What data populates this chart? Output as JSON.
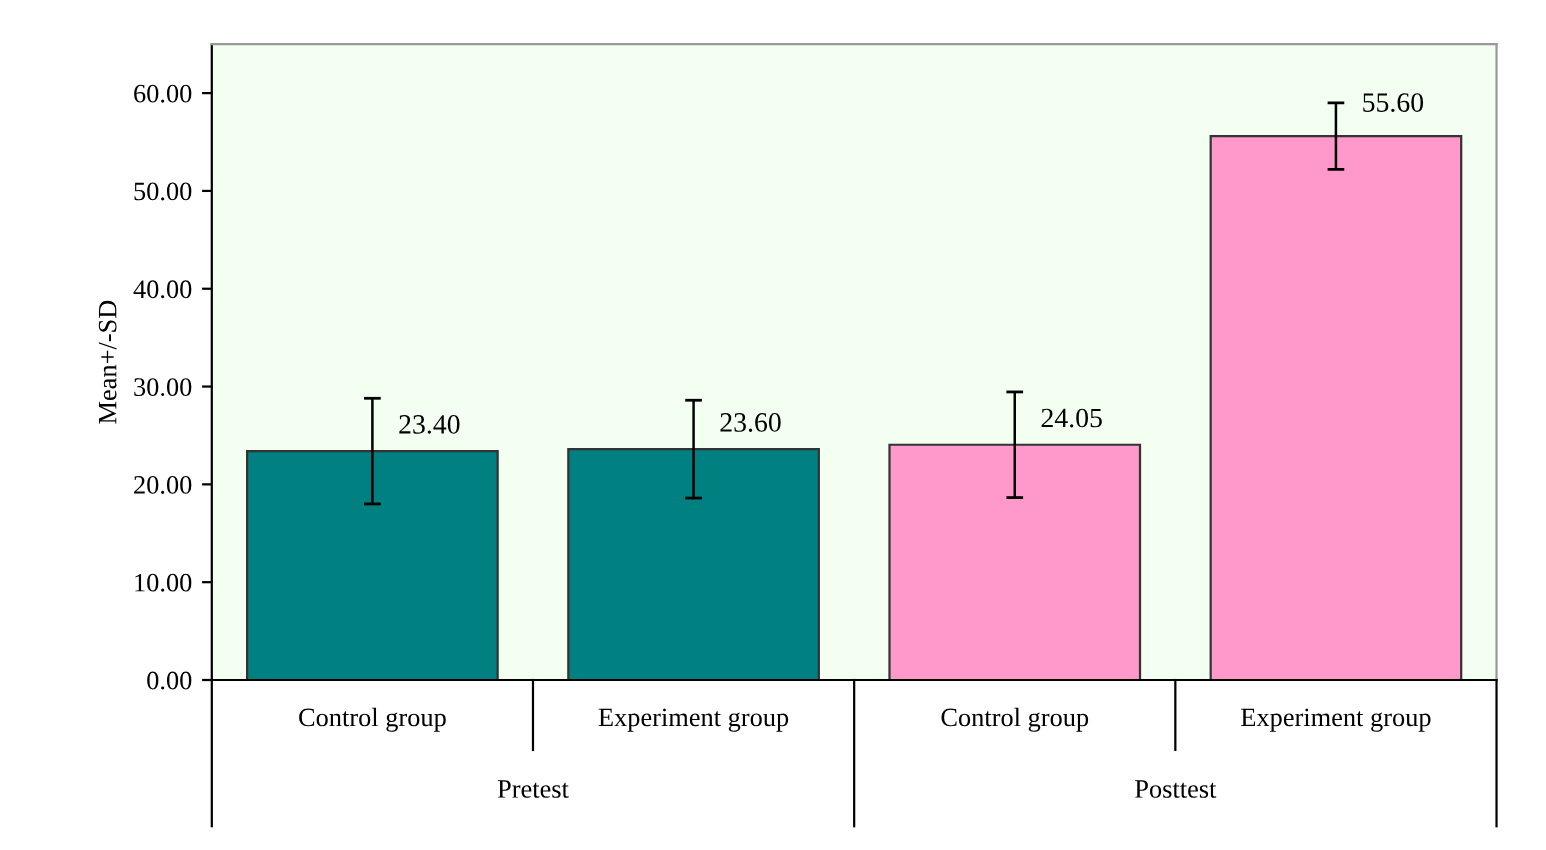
{
  "chart_data": {
    "type": "bar",
    "categories": [
      "Control group",
      "Experiment group",
      "Control group",
      "Experiment group"
    ],
    "values": [
      23.4,
      23.6,
      24.05,
      55.6
    ],
    "errors": [
      5.4,
      5.0,
      5.4,
      3.4
    ],
    "colors": [
      "#008080",
      "#008080",
      "#ff99cc",
      "#ff99cc"
    ],
    "value_labels": [
      "23.40",
      "23.60",
      "24.05",
      "55.60"
    ],
    "ylabel": "Mean+/-SD",
    "annotations": [
      "Pretest",
      "Posttest"
    ],
    "ylim": [
      0,
      65
    ],
    "yticks": [
      {
        "value": 0,
        "label": "0.00"
      },
      {
        "value": 10,
        "label": "10.00"
      },
      {
        "value": 20,
        "label": "20.00"
      },
      {
        "value": 30,
        "label": "30.00"
      },
      {
        "value": 40,
        "label": "40.00"
      },
      {
        "value": 50,
        "label": "50.00"
      },
      {
        "value": 60,
        "label": "60.00"
      }
    ],
    "grid": false,
    "legend": false
  }
}
